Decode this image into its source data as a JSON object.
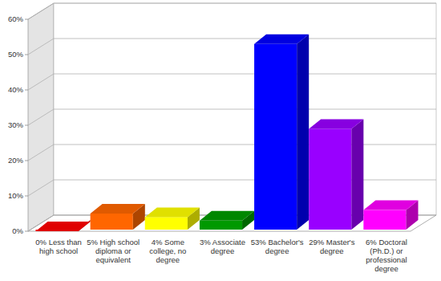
{
  "chart_data": {
    "type": "bar",
    "categories": [
      "0% Less than high school",
      "5% High school diploma or equivalent",
      "4% Some college, no degree",
      "3% Associate degree",
      "53% Bachelor's degree",
      "29% Master's degree",
      "6% Doctoral (Ph.D.) or professional degree"
    ],
    "values": [
      0,
      5,
      4,
      3,
      53,
      29,
      6
    ],
    "colors": [
      "#ff0000",
      "#ff6600",
      "#ffff00",
      "#009900",
      "#0000ff",
      "#9900ff",
      "#ff00ff"
    ],
    "ylim": [
      0,
      60
    ],
    "yticks": [
      {
        "value": 0,
        "label": "0%"
      },
      {
        "value": 10,
        "label": "10%"
      },
      {
        "value": 20,
        "label": "20%"
      },
      {
        "value": 30,
        "label": "30%"
      },
      {
        "value": 40,
        "label": "40%"
      },
      {
        "value": 50,
        "label": "50%"
      },
      {
        "value": 60,
        "label": "60%"
      }
    ],
    "grid": true
  }
}
